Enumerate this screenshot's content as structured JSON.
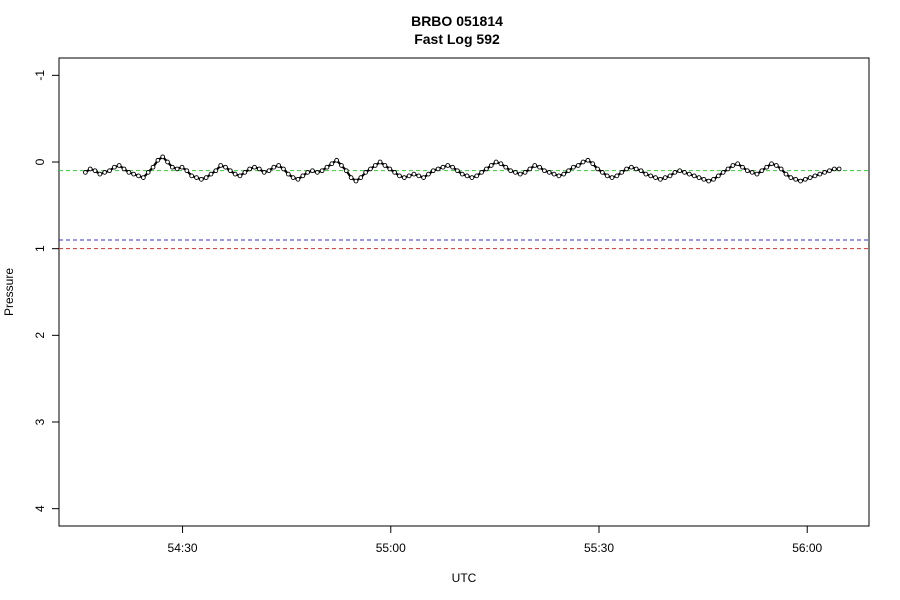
{
  "chart_data": {
    "type": "line",
    "title": "BRBO 051814",
    "subtitle": "Fast Log 592",
    "xlabel": "UTC",
    "ylabel": "Pressure",
    "x_axis": {
      "unit": "seconds past 00:54:00",
      "range": [
        12.2,
        128.9
      ],
      "ticks": [
        {
          "value": 30,
          "label": "54:30"
        },
        {
          "value": 60,
          "label": "55:00"
        },
        {
          "value": 90,
          "label": "55:30"
        },
        {
          "value": 120,
          "label": "56:00"
        }
      ]
    },
    "y_axis": {
      "reversed": true,
      "range": [
        -1.2,
        4.2
      ],
      "ticks": [
        {
          "value": -1,
          "label": "-1"
        },
        {
          "value": 0,
          "label": "0"
        },
        {
          "value": 1,
          "label": "1"
        },
        {
          "value": 2,
          "label": "2"
        },
        {
          "value": 3,
          "label": "3"
        },
        {
          "value": 4,
          "label": "4"
        }
      ]
    },
    "reference_lines": [
      {
        "y": 0.1,
        "color": "#33cc33",
        "style": "dashed"
      },
      {
        "y": 0.9,
        "color": "#3333cc",
        "style": "dashed"
      },
      {
        "y": 1.0,
        "color": "#cc3333",
        "style": "dashed"
      }
    ],
    "grid": false,
    "series": [
      {
        "color": "#000000",
        "marker": "open-circle",
        "x_start": 16.0,
        "x_end": 124.6,
        "values": [
          0.12,
          0.08,
          0.1,
          0.14,
          0.12,
          0.1,
          0.06,
          0.04,
          0.08,
          0.12,
          0.14,
          0.16,
          0.18,
          0.12,
          0.06,
          -0.02,
          -0.06,
          0.0,
          0.06,
          0.08,
          0.06,
          0.1,
          0.16,
          0.18,
          0.2,
          0.18,
          0.14,
          0.1,
          0.04,
          0.06,
          0.1,
          0.14,
          0.16,
          0.12,
          0.08,
          0.06,
          0.08,
          0.12,
          0.1,
          0.06,
          0.04,
          0.08,
          0.14,
          0.18,
          0.2,
          0.16,
          0.12,
          0.1,
          0.12,
          0.1,
          0.06,
          0.02,
          -0.02,
          0.04,
          0.1,
          0.18,
          0.22,
          0.18,
          0.12,
          0.08,
          0.04,
          0.0,
          0.04,
          0.08,
          0.12,
          0.16,
          0.18,
          0.16,
          0.14,
          0.16,
          0.18,
          0.14,
          0.1,
          0.08,
          0.06,
          0.04,
          0.06,
          0.1,
          0.14,
          0.16,
          0.18,
          0.16,
          0.12,
          0.08,
          0.04,
          0.0,
          0.02,
          0.06,
          0.1,
          0.12,
          0.14,
          0.12,
          0.08,
          0.04,
          0.06,
          0.1,
          0.12,
          0.14,
          0.16,
          0.14,
          0.1,
          0.06,
          0.04,
          0.0,
          -0.02,
          0.02,
          0.08,
          0.12,
          0.16,
          0.18,
          0.16,
          0.12,
          0.08,
          0.06,
          0.08,
          0.1,
          0.14,
          0.16,
          0.18,
          0.2,
          0.18,
          0.16,
          0.12,
          0.1,
          0.12,
          0.14,
          0.16,
          0.18,
          0.2,
          0.22,
          0.2,
          0.16,
          0.12,
          0.08,
          0.04,
          0.02,
          0.06,
          0.1,
          0.12,
          0.14,
          0.1,
          0.06,
          0.02,
          0.04,
          0.08,
          0.14,
          0.18,
          0.2,
          0.22,
          0.2,
          0.18,
          0.16,
          0.14,
          0.12,
          0.1,
          0.08,
          0.08
        ]
      }
    ]
  }
}
